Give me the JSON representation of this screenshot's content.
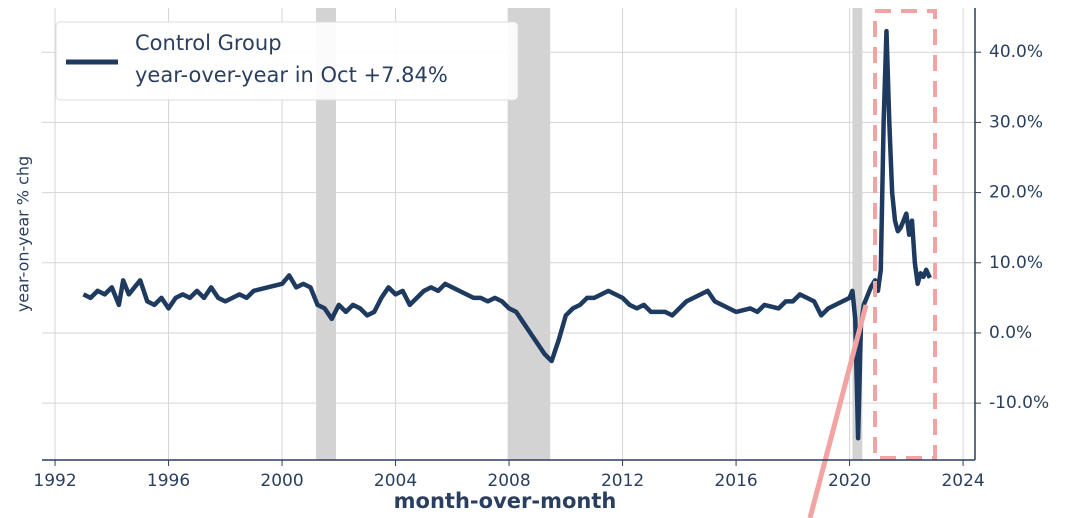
{
  "chart_data": {
    "type": "line",
    "ylabel": "year-on-year % chg",
    "xlabel": "month-over-month",
    "legend_note": "year-over-year in Oct +7.84%",
    "x": [
      1993.0,
      1993.25,
      1993.5,
      1993.75,
      1994.0,
      1994.25,
      1994.4,
      1994.6,
      1994.8,
      1995.0,
      1995.25,
      1995.5,
      1995.75,
      1996.0,
      1996.25,
      1996.5,
      1996.75,
      1997.0,
      1997.25,
      1997.5,
      1997.75,
      1998.0,
      1998.25,
      1998.5,
      1998.75,
      1999.0,
      1999.5,
      2000.0,
      2000.25,
      2000.5,
      2000.75,
      2001.0,
      2001.25,
      2001.5,
      2001.75,
      2002.0,
      2002.25,
      2002.5,
      2002.75,
      2003.0,
      2003.25,
      2003.5,
      2003.75,
      2004.0,
      2004.25,
      2004.5,
      2004.75,
      2005.0,
      2005.25,
      2005.5,
      2005.75,
      2006.0,
      2006.25,
      2006.5,
      2006.75,
      2007.0,
      2007.25,
      2007.5,
      2007.75,
      2008.0,
      2008.25,
      2008.5,
      2008.75,
      2009.0,
      2009.25,
      2009.5,
      2009.75,
      2010.0,
      2010.25,
      2010.5,
      2010.75,
      2011.0,
      2011.25,
      2011.5,
      2011.75,
      2012.0,
      2012.25,
      2012.5,
      2012.75,
      2013.0,
      2013.5,
      2013.75,
      2014.0,
      2014.25,
      2014.5,
      2014.75,
      2015.0,
      2015.25,
      2015.5,
      2015.75,
      2016.0,
      2016.5,
      2016.75,
      2017.0,
      2017.5,
      2017.75,
      2018.0,
      2018.25,
      2018.5,
      2018.75,
      2019.0,
      2019.25,
      2019.5,
      2019.75,
      2020.0,
      2020.1,
      2020.2,
      2020.3,
      2020.4,
      2020.5,
      2020.6,
      2020.75,
      2020.9,
      2021.0,
      2021.1,
      2021.2,
      2021.3,
      2021.4,
      2021.5,
      2021.6,
      2021.7,
      2021.8,
      2021.9,
      2022.0,
      2022.1,
      2022.2,
      2022.3,
      2022.4,
      2022.5,
      2022.6,
      2022.7,
      2022.83
    ],
    "series": [
      {
        "name": "Control Group",
        "color": "#1f3a5f",
        "values": [
          5.5,
          5,
          6,
          5.5,
          6.5,
          4,
          7.5,
          5.5,
          6.5,
          7.5,
          4.5,
          4,
          5,
          3.5,
          5,
          5.5,
          5,
          6,
          5,
          6.5,
          5,
          4.5,
          5,
          5.5,
          5,
          6,
          6.5,
          7,
          8.2,
          6.5,
          7,
          6.5,
          4,
          3.5,
          2,
          4,
          3,
          4,
          3.5,
          2.5,
          3,
          5,
          6.5,
          5.5,
          6,
          4,
          5,
          6,
          6.5,
          6,
          7,
          6.5,
          6,
          5.5,
          5,
          5,
          4.5,
          5,
          4.5,
          3.5,
          3,
          1.5,
          0,
          -1.5,
          -3,
          -4,
          -1,
          2.5,
          3.5,
          4,
          5,
          5,
          5.5,
          6,
          5.5,
          5,
          4,
          3.5,
          4,
          3,
          3,
          2.5,
          3.5,
          4.5,
          5,
          5.5,
          6,
          4.5,
          4,
          3.5,
          3,
          3.5,
          3,
          4,
          3.5,
          4.5,
          4.5,
          5.5,
          5,
          4.5,
          2.5,
          3.5,
          4,
          4.5,
          5,
          6,
          2,
          -15,
          1,
          4,
          5,
          6.5,
          7.5,
          6,
          9,
          30,
          43,
          30,
          20,
          16,
          14.5,
          15,
          16,
          17,
          14,
          16,
          10,
          7,
          8.5,
          8,
          9,
          7.84
        ]
      }
    ],
    "shaded_ranges": [
      [
        2001.2,
        2001.9
      ],
      [
        2007.95,
        2009.45
      ],
      [
        2020.1,
        2020.45
      ]
    ],
    "shade_color": "#d3d3d3",
    "xlim": [
      1991.54,
      2024.42
    ],
    "xticks": [
      1992,
      1996,
      2000,
      2004,
      2008,
      2012,
      2016,
      2020,
      2024
    ],
    "ylim": [
      -18.1,
      46.3
    ],
    "yticks": [
      {
        "value": -10,
        "label": "-10.0%"
      },
      {
        "value": 0,
        "label": "0.0%"
      },
      {
        "value": 10,
        "label": "10.0%"
      },
      {
        "value": 20,
        "label": "20.0%"
      },
      {
        "value": 30,
        "label": "30.0%"
      },
      {
        "value": 40,
        "label": "40.0%"
      }
    ],
    "grid": true
  }
}
